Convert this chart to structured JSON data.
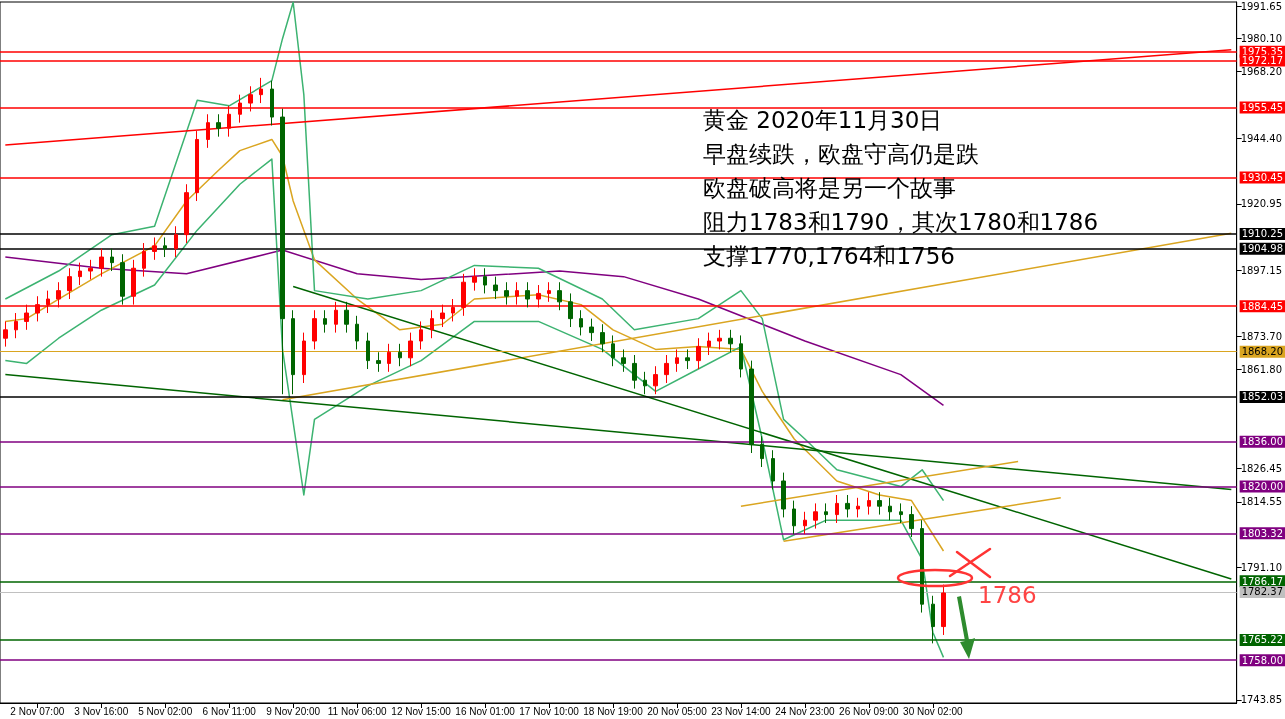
{
  "chart_data": {
    "type": "candlestick",
    "categories": [
      null,
      null,
      null,
      "2 Nov 07:00",
      null,
      null,
      null,
      null,
      null,
      "3 Nov 16:00",
      null,
      null,
      null,
      null,
      null,
      "5 Nov 02:00",
      null,
      null,
      null,
      null,
      null,
      "6 Nov 11:00",
      null,
      null,
      null,
      null,
      null,
      "9 Nov 20:00",
      null,
      null,
      null,
      null,
      null,
      "11 Nov 06:00",
      null,
      null,
      null,
      null,
      null,
      "12 Nov 15:00",
      null,
      null,
      null,
      null,
      null,
      "16 Nov 01:00",
      null,
      null,
      null,
      null,
      null,
      "17 Nov 10:00",
      null,
      null,
      null,
      null,
      null,
      "18 Nov 19:00",
      null,
      null,
      null,
      null,
      null,
      "20 Nov 05:00",
      null,
      null,
      null,
      null,
      null,
      "23 Nov 14:00",
      null,
      null,
      null,
      null,
      null,
      "24 Nov 23:00",
      null,
      null,
      null,
      null,
      null,
      "26 Nov 09:00",
      null,
      null,
      null,
      null,
      null,
      "30 Nov 02:00",
      null,
      null,
      null,
      null,
      null,
      null,
      null,
      null,
      null,
      null,
      null,
      null,
      null,
      null,
      null,
      null,
      null,
      null,
      null,
      null,
      null,
      null,
      null,
      null,
      null,
      null,
      null,
      null
    ],
    "ohlc": [
      [
        1873,
        1879,
        1870,
        1876
      ],
      [
        1876,
        1882,
        1873,
        1879
      ],
      [
        1879,
        1885,
        1876,
        1882
      ],
      [
        1882,
        1888,
        1879,
        1885
      ],
      [
        1885,
        1890,
        1882,
        1887
      ],
      [
        1887,
        1893,
        1884,
        1890
      ],
      [
        1890,
        1898,
        1887,
        1895
      ],
      [
        1895,
        1900,
        1892,
        1897
      ],
      [
        1897,
        1901,
        1894,
        1898
      ],
      [
        1898,
        1905,
        1895,
        1902
      ],
      [
        1902,
        1905,
        1897,
        1900
      ],
      [
        1900,
        1903,
        1885,
        1888
      ],
      [
        1888,
        1901,
        1885,
        1898
      ],
      [
        1898,
        1907,
        1895,
        1904
      ],
      [
        1904,
        1909,
        1901,
        1906
      ],
      [
        1906,
        1909,
        1902,
        1905
      ],
      [
        1905,
        1913,
        1902,
        1910
      ],
      [
        1910,
        1928,
        1907,
        1925
      ],
      [
        1925,
        1947,
        1922,
        1944
      ],
      [
        1944,
        1953,
        1941,
        1950
      ],
      [
        1950,
        1953,
        1945,
        1948
      ],
      [
        1948,
        1956,
        1945,
        1953
      ],
      [
        1953,
        1960,
        1950,
        1957
      ],
      [
        1957,
        1963,
        1954,
        1960
      ],
      [
        1960,
        1966,
        1957,
        1962
      ],
      [
        1962,
        1965,
        1949,
        1952
      ],
      [
        1952,
        1955,
        1853,
        1880
      ],
      [
        1880,
        1883,
        1853,
        1860
      ],
      [
        1860,
        1875,
        1857,
        1872
      ],
      [
        1872,
        1883,
        1869,
        1880
      ],
      [
        1880,
        1883,
        1875,
        1878
      ],
      [
        1878,
        1886,
        1875,
        1883
      ],
      [
        1883,
        1886,
        1875,
        1878
      ],
      [
        1878,
        1881,
        1869,
        1872
      ],
      [
        1872,
        1875,
        1862,
        1865
      ],
      [
        1865,
        1868,
        1861,
        1864
      ],
      [
        1864,
        1871,
        1861,
        1868
      ],
      [
        1868,
        1871,
        1863,
        1866
      ],
      [
        1866,
        1875,
        1863,
        1872
      ],
      [
        1872,
        1879,
        1869,
        1876
      ],
      [
        1876,
        1883,
        1873,
        1880
      ],
      [
        1880,
        1885,
        1877,
        1882
      ],
      [
        1882,
        1887,
        1879,
        1884
      ],
      [
        1884,
        1896,
        1881,
        1893
      ],
      [
        1893,
        1898,
        1890,
        1895
      ],
      [
        1895,
        1898,
        1889,
        1892
      ],
      [
        1892,
        1895,
        1887,
        1890
      ],
      [
        1890,
        1893,
        1885,
        1888
      ],
      [
        1888,
        1893,
        1885,
        1890
      ],
      [
        1890,
        1893,
        1884,
        1887
      ],
      [
        1887,
        1892,
        1884,
        1889
      ],
      [
        1889,
        1893,
        1886,
        1890
      ],
      [
        1890,
        1893,
        1883,
        1886
      ],
      [
        1886,
        1889,
        1877,
        1880
      ],
      [
        1880,
        1883,
        1874,
        1877
      ],
      [
        1877,
        1880,
        1872,
        1875
      ],
      [
        1875,
        1878,
        1868,
        1871
      ],
      [
        1871,
        1874,
        1863,
        1866
      ],
      [
        1866,
        1869,
        1861,
        1864
      ],
      [
        1864,
        1867,
        1855,
        1858
      ],
      [
        1858,
        1861,
        1853,
        1856
      ],
      [
        1856,
        1863,
        1853,
        1860
      ],
      [
        1860,
        1867,
        1857,
        1864
      ],
      [
        1864,
        1869,
        1861,
        1866
      ],
      [
        1866,
        1869,
        1862,
        1865
      ],
      [
        1865,
        1873,
        1862,
        1870
      ],
      [
        1870,
        1875,
        1867,
        1872
      ],
      [
        1872,
        1876,
        1869,
        1873
      ],
      [
        1873,
        1876,
        1868,
        1871
      ],
      [
        1871,
        1874,
        1859,
        1862
      ],
      [
        1862,
        1865,
        1832,
        1835
      ],
      [
        1835,
        1838,
        1827,
        1830
      ],
      [
        1830,
        1833,
        1819,
        1822
      ],
      [
        1822,
        1825,
        1809,
        1812
      ],
      [
        1812,
        1815,
        1803,
        1806
      ],
      [
        1806,
        1811,
        1803,
        1808
      ],
      [
        1808,
        1814,
        1805,
        1811
      ],
      [
        1811,
        1814,
        1807,
        1810
      ],
      [
        1810,
        1817,
        1807,
        1814
      ],
      [
        1814,
        1817,
        1809,
        1812
      ],
      [
        1812,
        1816,
        1809,
        1813
      ],
      [
        1813,
        1818,
        1810,
        1815
      ],
      [
        1815,
        1818,
        1810,
        1813
      ],
      [
        1813,
        1816,
        1808,
        1811
      ],
      [
        1811,
        1814,
        1807,
        1810
      ],
      [
        1810,
        1813,
        1802,
        1805
      ],
      [
        1805,
        1808,
        1775,
        1778
      ],
      [
        1778,
        1781,
        1764,
        1770
      ],
      [
        1770,
        1785,
        1767,
        1782
      ],
      null,
      null,
      null,
      null,
      null,
      null,
      null,
      null,
      null,
      null,
      null,
      null,
      null,
      null,
      null,
      null,
      null,
      null,
      null,
      null,
      null,
      null,
      null,
      null,
      null,
      null,
      null
    ],
    "colors": [
      "#ff0000",
      "#ff0000",
      "#ff0000",
      "#ff0000",
      "#ff0000",
      "#ff0000",
      "#ff0000",
      "#ff0000",
      "#ff0000",
      "#ff0000",
      "#006400",
      "#006400",
      "#ff0000",
      "#ff0000",
      "#ff0000",
      "#006400",
      "#ff0000",
      "#ff0000",
      "#ff0000",
      "#ff0000",
      "#006400",
      "#ff0000",
      "#ff0000",
      "#ff0000",
      "#ff0000",
      "#006400",
      "#006400",
      "#006400",
      "#ff0000",
      "#ff0000",
      "#006400",
      "#ff0000",
      "#006400",
      "#006400",
      "#006400",
      "#006400",
      "#ff0000",
      "#006400",
      "#ff0000",
      "#ff0000",
      "#ff0000",
      "#ff0000",
      "#ff0000",
      "#ff0000",
      "#ff0000",
      "#006400",
      "#006400",
      "#006400",
      "#ff0000",
      "#006400",
      "#ff0000",
      "#ff0000",
      "#006400",
      "#006400",
      "#006400",
      "#006400",
      "#006400",
      "#006400",
      "#006400",
      "#006400",
      "#006400",
      "#ff0000",
      "#ff0000",
      "#ff0000",
      "#006400",
      "#ff0000",
      "#ff0000",
      "#ff0000",
      "#006400",
      "#006400",
      "#006400",
      "#006400",
      "#006400",
      "#006400",
      "#006400",
      "#ff0000",
      "#ff0000",
      "#006400",
      "#ff0000",
      "#006400",
      "#ff0000",
      "#ff0000",
      "#006400",
      "#006400",
      "#006400",
      "#006400",
      "#006400",
      "#006400",
      "#ff0000",
      null,
      null,
      null,
      null,
      null,
      null,
      null,
      null,
      null,
      null,
      null,
      null,
      null,
      null,
      null,
      null,
      null,
      null,
      null,
      null,
      null,
      null,
      null,
      null,
      null,
      null,
      null
    ],
    "series": [
      {
        "type": "line",
        "color": "#800080",
        "values": [
          1902,
          null,
          null,
          null,
          null,
          null,
          null,
          null,
          null,
          1898,
          null,
          null,
          null,
          null,
          null,
          null,
          null,
          1896,
          null,
          null,
          null,
          null,
          null,
          null,
          null,
          null,
          1904.5,
          null,
          null,
          null,
          null,
          null,
          null,
          1896,
          null,
          null,
          null,
          null,
          null,
          1894,
          null,
          null,
          null,
          null,
          null,
          null,
          null,
          null,
          null,
          null,
          null,
          null,
          1897,
          null,
          null,
          null,
          null,
          null,
          1895,
          null,
          null,
          null,
          null,
          null,
          null,
          1887,
          null,
          null,
          null,
          null,
          null,
          null,
          null,
          null,
          null,
          1872,
          null,
          null,
          null,
          null,
          null,
          null,
          null,
          null,
          1860,
          null,
          null,
          null,
          1849,
          null,
          null,
          null,
          null,
          null,
          null,
          null,
          null,
          null,
          null,
          null,
          null,
          null,
          null,
          null,
          null,
          null,
          null,
          null,
          null,
          null,
          null,
          null,
          null,
          null,
          null,
          null
        ]
      },
      {
        "type": "line",
        "color": "#daa520",
        "values": [
          1879,
          null,
          1880,
          null,
          null,
          1887,
          null,
          null,
          null,
          1896,
          null,
          null,
          null,
          null,
          1906,
          null,
          null,
          1922,
          null,
          null,
          1933,
          null,
          1940,
          null,
          null,
          1944,
          1938,
          1922,
          null,
          1901,
          null,
          null,
          null,
          1887,
          null,
          null,
          null,
          1876,
          null,
          null,
          null,
          1878,
          null,
          null,
          1887,
          null,
          null,
          null,
          null,
          null,
          1888.5,
          null,
          null,
          null,
          1885,
          null,
          null,
          1876,
          null,
          null,
          null,
          1869,
          null,
          null,
          null,
          1870,
          null,
          null,
          null,
          1869,
          null,
          1854,
          null,
          null,
          1837,
          null,
          null,
          null,
          1822,
          null,
          null,
          null,
          1817,
          null,
          null,
          1815,
          null,
          null,
          1797,
          null,
          null,
          null,
          null,
          null,
          null,
          null,
          null,
          null,
          null,
          null,
          null,
          null,
          null,
          null,
          null,
          null,
          null,
          null,
          null,
          null,
          null,
          null,
          null,
          null,
          null,
          null
        ]
      },
      {
        "type": "line",
        "color": "#3cb371",
        "values": [
          1887,
          null,
          null,
          null,
          null,
          1897,
          null,
          null,
          null,
          null,
          1910,
          null,
          null,
          null,
          1913,
          null,
          null,
          null,
          1958,
          null,
          null,
          1956,
          null,
          null,
          null,
          1965,
          1980,
          1993,
          1960,
          1890,
          null,
          null,
          null,
          null,
          1887,
          null,
          null,
          null,
          null,
          1890,
          null,
          null,
          null,
          null,
          1899,
          null,
          null,
          null,
          null,
          null,
          1898,
          null,
          null,
          null,
          null,
          null,
          1887,
          null,
          null,
          1876,
          null,
          null,
          null,
          null,
          null,
          1880,
          null,
          null,
          null,
          1890,
          null,
          1880,
          null,
          1844,
          null,
          1837,
          null,
          null,
          1826,
          null,
          null,
          null,
          null,
          null,
          1820,
          null,
          1826,
          null,
          1815,
          null,
          null,
          null,
          null,
          null,
          null,
          null,
          null,
          null,
          null,
          null,
          null,
          null,
          null,
          null,
          null,
          null,
          null,
          null,
          null,
          null,
          null,
          null,
          null,
          null,
          null,
          null
        ]
      },
      {
        "type": "line",
        "color": "#3cb371",
        "values": [
          1865,
          null,
          1864,
          null,
          null,
          1873,
          null,
          null,
          null,
          1883,
          null,
          null,
          null,
          null,
          1892,
          null,
          null,
          null,
          1911.6,
          null,
          null,
          null,
          1928,
          null,
          null,
          1937,
          1869,
          null,
          1817,
          1844,
          null,
          null,
          null,
          null,
          1856,
          null,
          null,
          null,
          null,
          1865,
          null,
          null,
          null,
          null,
          1879,
          null,
          null,
          null,
          null,
          null,
          1879,
          null,
          null,
          null,
          null,
          null,
          1869,
          null,
          null,
          null,
          null,
          1854,
          null,
          null,
          null,
          1862,
          null,
          null,
          null,
          1870,
          null,
          1837,
          null,
          1801,
          null,
          null,
          null,
          1808,
          null,
          null,
          null,
          null,
          null,
          null,
          1808,
          null,
          1794,
          1768,
          1759,
          null,
          null,
          null,
          null,
          null,
          null,
          null,
          null,
          null,
          null,
          null,
          null,
          null,
          null,
          null,
          null,
          null,
          null,
          null,
          null,
          null,
          null,
          null,
          null,
          null,
          null,
          null
        ]
      },
      {
        "type": "line",
        "color": "#ff0000",
        "values": [
          1942,
          null,
          null,
          null,
          null,
          null,
          null,
          null,
          null,
          null,
          null,
          null,
          null,
          null,
          null,
          null,
          null,
          null,
          null,
          null,
          null,
          null,
          null,
          null,
          null,
          null,
          null,
          null,
          null,
          null,
          null,
          null,
          null,
          null,
          null,
          null,
          null,
          null,
          null,
          null,
          null,
          null,
          null,
          null,
          null,
          null,
          null,
          null,
          null,
          null,
          null,
          null,
          null,
          null,
          null,
          null,
          null,
          null,
          null,
          null,
          null,
          null,
          null,
          null,
          null,
          null,
          null,
          null,
          null,
          null,
          null,
          null,
          null,
          null,
          null,
          null,
          null,
          null,
          null,
          null,
          null,
          null,
          null,
          null,
          null,
          null,
          null,
          null,
          null,
          null,
          null,
          null,
          null,
          null,
          null,
          null,
          null,
          null,
          null,
          null,
          null,
          null,
          null,
          null,
          null,
          null,
          null,
          null,
          null,
          null,
          null,
          null,
          null,
          null,
          null,
          1976
        ]
      },
      {
        "type": "line",
        "color": "#daa520",
        "values": [
          null,
          null,
          null,
          null,
          null,
          null,
          null,
          null,
          null,
          null,
          null,
          null,
          null,
          null,
          null,
          null,
          null,
          null,
          null,
          null,
          null,
          null,
          null,
          null,
          null,
          null,
          1851,
          null,
          null,
          null,
          null,
          null,
          null,
          null,
          null,
          null,
          null,
          null,
          null,
          null,
          null,
          null,
          null,
          null,
          null,
          null,
          null,
          null,
          null,
          null,
          null,
          null,
          null,
          null,
          null,
          null,
          null,
          null,
          null,
          null,
          null,
          null,
          null,
          null,
          null,
          null,
          null,
          null,
          null,
          null,
          null,
          null,
          null,
          null,
          null,
          null,
          null,
          null,
          null,
          null,
          null,
          null,
          null,
          null,
          null,
          null,
          null,
          null,
          null,
          null,
          null,
          null,
          null,
          null,
          null,
          null,
          null,
          null,
          null,
          null,
          null,
          null,
          null,
          null,
          null,
          null,
          null,
          null,
          null,
          null,
          null,
          null,
          null,
          null,
          null,
          1910.5
        ]
      },
      {
        "type": "line",
        "color": "#006400",
        "values": [
          1860,
          null,
          null,
          null,
          null,
          null,
          null,
          null,
          null,
          null,
          null,
          null,
          null,
          null,
          null,
          null,
          null,
          null,
          null,
          null,
          null,
          null,
          null,
          null,
          null,
          null,
          null,
          null,
          null,
          null,
          null,
          null,
          null,
          null,
          null,
          null,
          null,
          null,
          null,
          null,
          null,
          null,
          null,
          null,
          null,
          null,
          null,
          null,
          null,
          null,
          null,
          null,
          null,
          null,
          null,
          null,
          null,
          null,
          null,
          null,
          null,
          null,
          null,
          null,
          null,
          null,
          null,
          null,
          null,
          null,
          null,
          null,
          null,
          null,
          null,
          null,
          null,
          null,
          null,
          null,
          null,
          null,
          null,
          null,
          null,
          null,
          null,
          null,
          null,
          null,
          null,
          null,
          null,
          null,
          null,
          null,
          null,
          null,
          null,
          null,
          null,
          null,
          null,
          null,
          null,
          null,
          null,
          null,
          null,
          null,
          null,
          null,
          null,
          null,
          null,
          1819
        ]
      },
      {
        "type": "line",
        "color": "#006400",
        "values": [
          null,
          null,
          null,
          null,
          null,
          null,
          null,
          null,
          null,
          null,
          null,
          null,
          null,
          null,
          null,
          null,
          null,
          null,
          null,
          null,
          null,
          null,
          null,
          null,
          null,
          null,
          null,
          1891.5,
          null,
          null,
          null,
          null,
          null,
          null,
          null,
          null,
          null,
          null,
          null,
          null,
          null,
          null,
          null,
          null,
          null,
          null,
          null,
          null,
          null,
          null,
          null,
          null,
          null,
          null,
          null,
          null,
          null,
          null,
          null,
          null,
          null,
          null,
          null,
          null,
          null,
          null,
          null,
          null,
          null,
          null,
          null,
          null,
          null,
          null,
          null,
          null,
          null,
          null,
          null,
          null,
          null,
          null,
          null,
          null,
          null,
          null,
          null,
          null,
          null,
          null,
          null,
          null,
          null,
          null,
          null,
          null,
          null,
          null,
          null,
          null,
          null,
          null,
          null,
          null,
          null,
          null,
          null,
          null,
          null,
          null,
          null,
          null,
          null,
          null,
          null,
          1787
        ]
      },
      {
        "type": "line",
        "color": "#daa520",
        "values": [
          null,
          null,
          null,
          null,
          null,
          null,
          null,
          null,
          null,
          null,
          null,
          null,
          null,
          null,
          null,
          null,
          null,
          null,
          null,
          null,
          null,
          null,
          null,
          null,
          null,
          null,
          null,
          null,
          null,
          null,
          null,
          null,
          null,
          null,
          null,
          null,
          null,
          null,
          null,
          null,
          null,
          null,
          null,
          null,
          null,
          null,
          null,
          null,
          null,
          null,
          null,
          null,
          null,
          null,
          null,
          null,
          null,
          null,
          null,
          null,
          null,
          null,
          null,
          null,
          null,
          null,
          null,
          null,
          null,
          1813,
          null,
          null,
          null,
          null,
          null,
          null,
          null,
          null,
          null,
          null,
          null,
          null,
          null,
          null,
          null,
          null,
          null,
          null,
          null,
          null,
          null,
          null,
          null,
          null,
          null,
          1829,
          null,
          null,
          null,
          null,
          null,
          null,
          null,
          null,
          null,
          null,
          null,
          null,
          null,
          null,
          null,
          null,
          null,
          null,
          null,
          null
        ]
      },
      {
        "type": "line",
        "color": "#daa520",
        "values": [
          null,
          null,
          null,
          null,
          null,
          null,
          null,
          null,
          null,
          null,
          null,
          null,
          null,
          null,
          null,
          null,
          null,
          null,
          null,
          null,
          null,
          null,
          null,
          null,
          null,
          null,
          null,
          null,
          null,
          null,
          null,
          null,
          null,
          null,
          null,
          null,
          null,
          null,
          null,
          null,
          null,
          null,
          null,
          null,
          null,
          null,
          null,
          null,
          null,
          null,
          null,
          null,
          null,
          null,
          null,
          null,
          null,
          null,
          null,
          null,
          null,
          null,
          null,
          null,
          null,
          null,
          null,
          null,
          null,
          null,
          null,
          null,
          null,
          1800.5,
          null,
          null,
          null,
          null,
          null,
          null,
          null,
          null,
          null,
          null,
          null,
          null,
          null,
          null,
          null,
          null,
          null,
          null,
          null,
          null,
          null,
          null,
          null,
          null,
          null,
          1816,
          null,
          null,
          null,
          null,
          null,
          null,
          null,
          null,
          null,
          null,
          null,
          null,
          null,
          null,
          null,
          null
        ]
      }
    ],
    "ylim": [
      1742.7,
      1993.1
    ],
    "yticks": [
      {
        "value": 1991.65,
        "label": "1991.65"
      },
      {
        "value": 1980.1,
        "label": "1980.10"
      },
      {
        "value": 1968.2,
        "label": "1968.20"
      },
      {
        "value": 1944.4,
        "label": "1944.40"
      },
      {
        "value": 1920.95,
        "label": "1920.95"
      },
      {
        "value": 1897.15,
        "label": "1897.15"
      },
      {
        "value": 1873.7,
        "label": "1873.70"
      },
      {
        "value": 1861.8,
        "label": "1861.80"
      },
      {
        "value": 1826.45,
        "label": "1826.45"
      },
      {
        "value": 1814.55,
        "label": "1814.55"
      },
      {
        "value": 1791.1,
        "label": "1791.10"
      },
      {
        "value": 1743.85,
        "label": "1743.85"
      }
    ],
    "ref_lines": [
      {
        "axis": "y",
        "value": 1975.35,
        "label": "1975.35",
        "color": "#ff0000"
      },
      {
        "axis": "y",
        "value": 1972.17,
        "label": "1972.17",
        "color": "#ff0000"
      },
      {
        "axis": "y",
        "value": 1955.45,
        "label": "1955.45",
        "color": "#ff0000"
      },
      {
        "axis": "y",
        "value": 1930.45,
        "label": "1930.45",
        "color": "#ff0000"
      },
      {
        "axis": "y",
        "value": 1910.25,
        "label": "1910.25",
        "color": "#000000"
      },
      {
        "axis": "y",
        "value": 1904.98,
        "label": "1904.98",
        "color": "#000000"
      },
      {
        "axis": "y",
        "value": 1884.45,
        "label": "1884.45",
        "color": "#ff0000"
      },
      {
        "axis": "y",
        "value": 1868.2,
        "label": "1868.20",
        "color": "#daa520"
      },
      {
        "axis": "y",
        "value": 1852.03,
        "label": "1852.03",
        "color": "#000000"
      },
      {
        "axis": "y",
        "value": 1836,
        "label": "1836.00",
        "color": "#800080"
      },
      {
        "axis": "y",
        "value": 1820,
        "label": "1820.00",
        "color": "#800080"
      },
      {
        "axis": "y",
        "value": 1803.32,
        "label": "1803.32",
        "color": "#800080"
      },
      {
        "axis": "y",
        "value": 1786.17,
        "label": "1786.17",
        "color": "#006400"
      },
      {
        "axis": "y",
        "value": 1782.37,
        "label": "1782.37",
        "color": "#c0c0c0"
      },
      {
        "axis": "y",
        "value": 1765.22,
        "label": "1765.22",
        "color": "#006400"
      },
      {
        "axis": "y",
        "value": 1758,
        "label": "1758.00",
        "color": "#800080"
      }
    ],
    "annotations": [
      "黄金 2020年11月30日",
      "早盘续跌，欧盘守高仍是跌",
      "欧盘破高将是另一个故事",
      "阻力1783和1790，其次1780和1786",
      "支撑1770,1764和1756",
      {
        "text": "1786",
        "y": 1786
      }
    ]
  }
}
